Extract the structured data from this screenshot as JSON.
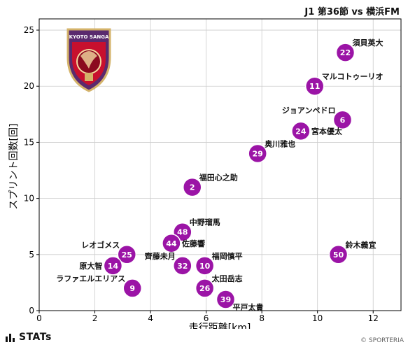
{
  "title": "J1 第36節 vs 横浜FM",
  "footer": {
    "brand": "STATs",
    "credit": "© SPORTERIA"
  },
  "colors": {
    "point": "#9b14a6",
    "point_edge": "#ffffff",
    "grid": "#cccccc",
    "axis": "#000000"
  },
  "crest": {
    "name": "Kyoto Sanga crest",
    "text": "KYOTO SANGA",
    "colors": [
      "#5a2a6e",
      "#c8102e",
      "#d4b36a"
    ]
  },
  "chart_data": {
    "type": "scatter",
    "xlabel": "走行距離[km]",
    "ylabel": "スプリント回数[回]",
    "xlim": [
      0,
      13
    ],
    "ylim": [
      0,
      26
    ],
    "xticks": [
      0,
      2,
      4,
      6,
      8,
      10,
      12
    ],
    "yticks": [
      0,
      5,
      10,
      15,
      20,
      25
    ],
    "grid": true,
    "points": [
      {
        "number": "22",
        "name": "須貝英大",
        "x": 11.0,
        "y": 23,
        "label_side": "right-up"
      },
      {
        "number": "11",
        "name": "マルコトゥーリオ",
        "x": 9.9,
        "y": 20,
        "label_side": "right-up"
      },
      {
        "number": "6",
        "name": "ジョアンペドロ",
        "x": 10.9,
        "y": 17,
        "label_side": "left-up"
      },
      {
        "number": "24",
        "name": "宮本優太",
        "x": 9.4,
        "y": 16,
        "label_side": "right"
      },
      {
        "number": "29",
        "name": "奥川雅也",
        "x": 7.85,
        "y": 14,
        "label_side": "right-up"
      },
      {
        "number": "2",
        "name": "福田心之助",
        "x": 5.5,
        "y": 11,
        "label_side": "right-up"
      },
      {
        "number": "48",
        "name": "中野瑠馬",
        "x": 5.15,
        "y": 7,
        "label_side": "right-up"
      },
      {
        "number": "44",
        "name": "佐藤響",
        "x": 4.75,
        "y": 6,
        "label_side": "right"
      },
      {
        "number": "50",
        "name": "鈴木義宜",
        "x": 10.75,
        "y": 5,
        "label_side": "right-up"
      },
      {
        "number": "25",
        "name": "レオゴメス",
        "x": 3.15,
        "y": 5,
        "label_side": "left-up"
      },
      {
        "number": "14",
        "name": "原大智",
        "x": 2.65,
        "y": 4,
        "label_side": "left"
      },
      {
        "number": "32",
        "name": "齊藤未月",
        "x": 5.15,
        "y": 4,
        "label_side": "left-up"
      },
      {
        "number": "10",
        "name": "福岡慎平",
        "x": 5.95,
        "y": 4,
        "label_side": "right-up"
      },
      {
        "number": "9",
        "name": "ラファエルエリアス",
        "x": 3.35,
        "y": 2,
        "label_side": "left-up"
      },
      {
        "number": "26",
        "name": "太田岳志",
        "x": 5.95,
        "y": 2,
        "label_side": "right-up"
      },
      {
        "number": "39",
        "name": "平戸太貴",
        "x": 6.7,
        "y": 1,
        "label_side": "right-down"
      }
    ]
  }
}
